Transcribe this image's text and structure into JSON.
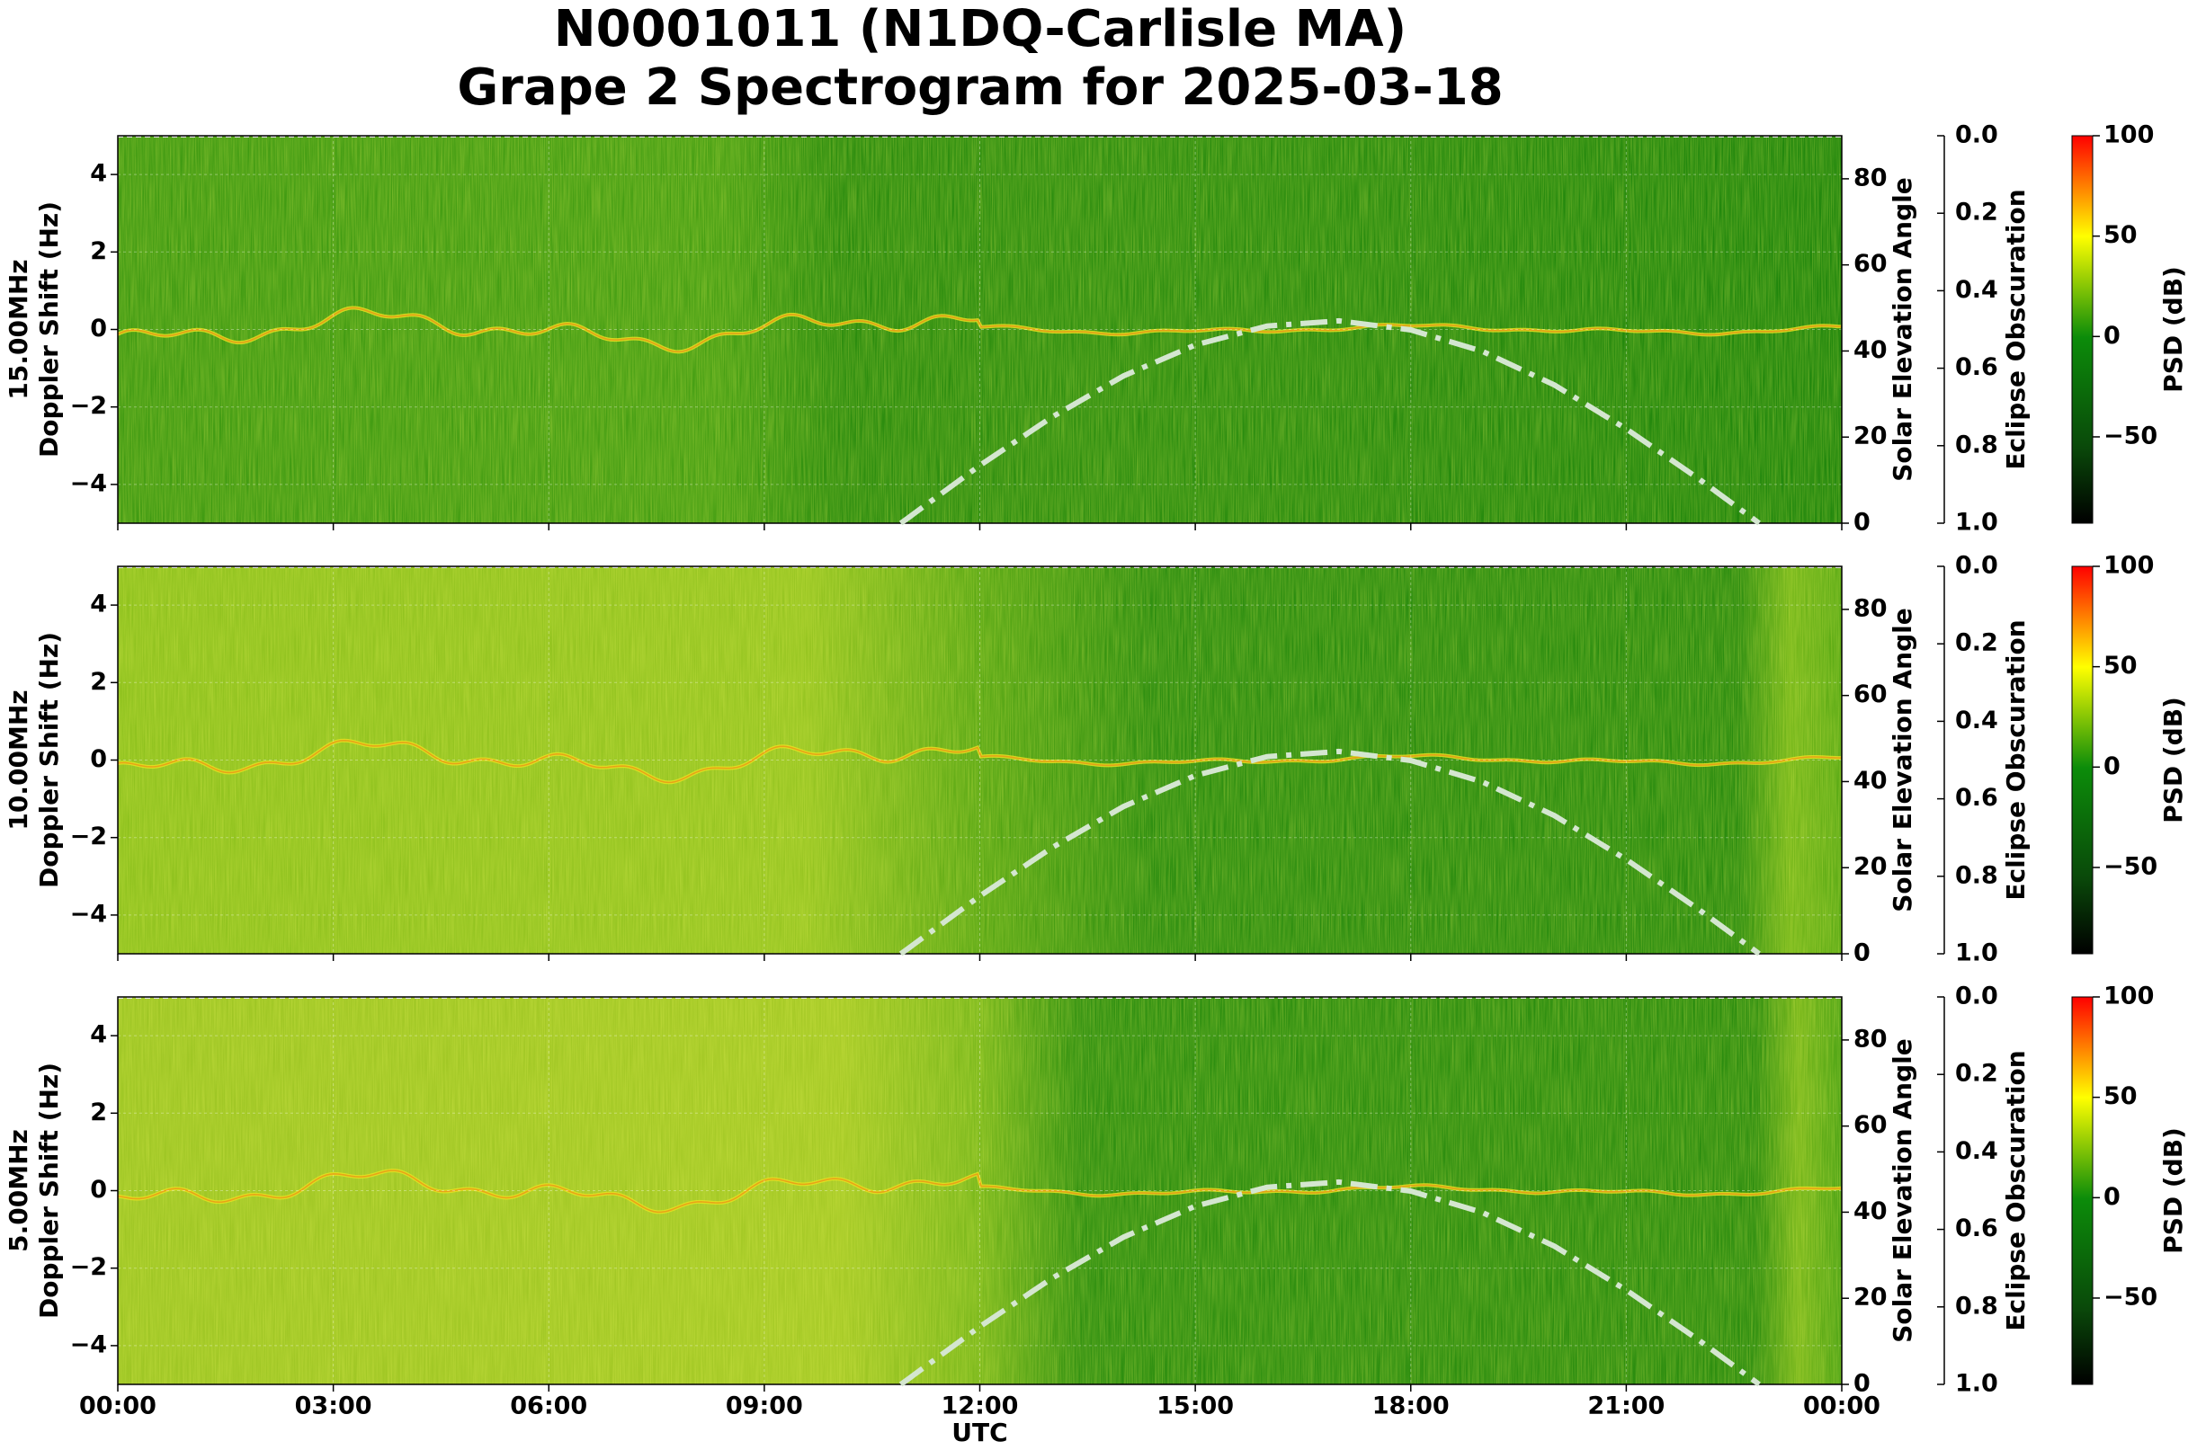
{
  "title": "N0001011 (N1DQ-Carlisle MA)",
  "subtitle": "Grape 2 Spectrogram for 2025-03-18",
  "xlabel": "UTC",
  "xlim": [
    0,
    24
  ],
  "xticks": [
    {
      "value": 0,
      "label": "00:00"
    },
    {
      "value": 3,
      "label": "03:00"
    },
    {
      "value": 6,
      "label": "06:00"
    },
    {
      "value": 9,
      "label": "09:00"
    },
    {
      "value": 12,
      "label": "12:00"
    },
    {
      "value": 15,
      "label": "15:00"
    },
    {
      "value": 18,
      "label": "18:00"
    },
    {
      "value": 21,
      "label": "21:00"
    },
    {
      "value": 24,
      "label": "00:00"
    }
  ],
  "chart_data": [
    {
      "type": "spectrogram",
      "band": "15.00MHz",
      "ylabel": "Doppler Shift (Hz)",
      "ylim": [
        -5,
        5
      ],
      "yticks": [
        {
          "value": -4,
          "label": "−4"
        },
        {
          "value": -2,
          "label": "−2"
        },
        0,
        2,
        4
      ],
      "y2label": "Solar Elevation Angle",
      "y2lim": [
        0,
        90
      ],
      "y2ticks": [
        0,
        20,
        40,
        60,
        80
      ],
      "y3label": "Eclipse Obscuration",
      "y3lim": [
        0,
        1
      ],
      "y3_inverted": true,
      "y3ticks": [
        {
          "value": 0,
          "label": "0.0"
        },
        {
          "value": 0.2,
          "label": "0.2"
        },
        {
          "value": 0.4,
          "label": "0.4"
        },
        {
          "value": 0.6,
          "label": "0.6"
        },
        {
          "value": 0.8,
          "label": "0.8"
        },
        {
          "value": 1,
          "label": "1.0"
        }
      ],
      "colorbar": {
        "label": "PSD (dB)",
        "lim": [
          -93,
          100
        ],
        "ticks": [
          {
            "value": -50,
            "label": "−50"
          },
          0,
          50,
          100
        ]
      },
      "solar_elevation": {
        "axis": "y2",
        "color": "#d4e6d0",
        "x": [
          10.9,
          11,
          12,
          13,
          14,
          15,
          16,
          17,
          18,
          19,
          20,
          21,
          22,
          22.85
        ],
        "values": [
          0,
          1.2,
          13.4,
          24.6,
          34.2,
          41.4,
          45.8,
          47.0,
          44.9,
          39.9,
          32.1,
          21.9,
          10.4,
          0
        ]
      }
    },
    {
      "type": "spectrogram",
      "band": "10.00MHz",
      "ylabel": "Doppler Shift (Hz)",
      "ylim": [
        -5,
        5
      ],
      "yticks": [
        {
          "value": -4,
          "label": "−4"
        },
        {
          "value": -2,
          "label": "−2"
        },
        0,
        2,
        4
      ],
      "y2label": "Solar Elevation Angle",
      "y2lim": [
        0,
        90
      ],
      "y2ticks": [
        0,
        20,
        40,
        60,
        80
      ],
      "y3label": "Eclipse Obscuration",
      "y3lim": [
        0,
        1
      ],
      "y3_inverted": true,
      "y3ticks": [
        {
          "value": 0,
          "label": "0.0"
        },
        {
          "value": 0.2,
          "label": "0.2"
        },
        {
          "value": 0.4,
          "label": "0.4"
        },
        {
          "value": 0.6,
          "label": "0.6"
        },
        {
          "value": 0.8,
          "label": "0.8"
        },
        {
          "value": 1,
          "label": "1.0"
        }
      ],
      "colorbar": {
        "label": "PSD (dB)",
        "lim": [
          -93,
          100
        ],
        "ticks": [
          {
            "value": -50,
            "label": "−50"
          },
          0,
          50,
          100
        ]
      },
      "solar_elevation": {
        "axis": "y2",
        "color": "#d4e6d0",
        "x": [
          10.9,
          11,
          12,
          13,
          14,
          15,
          16,
          17,
          18,
          19,
          20,
          21,
          22,
          22.85
        ],
        "values": [
          0,
          1.2,
          13.4,
          24.6,
          34.2,
          41.4,
          45.8,
          47.0,
          44.9,
          39.9,
          32.1,
          21.9,
          10.4,
          0
        ]
      }
    },
    {
      "type": "spectrogram",
      "band": "5.00MHz",
      "ylabel": "Doppler Shift (Hz)",
      "ylim": [
        -5,
        5
      ],
      "yticks": [
        {
          "value": -4,
          "label": "−4"
        },
        {
          "value": -2,
          "label": "−2"
        },
        0,
        2,
        4
      ],
      "y2label": "Solar Elevation Angle",
      "y2lim": [
        0,
        90
      ],
      "y2ticks": [
        0,
        20,
        40,
        60,
        80
      ],
      "y3label": "Eclipse Obscuration",
      "y3lim": [
        0,
        1
      ],
      "y3_inverted": true,
      "y3ticks": [
        {
          "value": 0,
          "label": "0.0"
        },
        {
          "value": 0.2,
          "label": "0.2"
        },
        {
          "value": 0.4,
          "label": "0.4"
        },
        {
          "value": 0.6,
          "label": "0.6"
        },
        {
          "value": 0.8,
          "label": "0.8"
        },
        {
          "value": 1,
          "label": "1.0"
        }
      ],
      "colorbar": {
        "label": "PSD (dB)",
        "lim": [
          -93,
          100
        ],
        "ticks": [
          {
            "value": -50,
            "label": "−50"
          },
          0,
          50,
          100
        ]
      },
      "solar_elevation": {
        "axis": "y2",
        "color": "#d4e6d0",
        "x": [
          10.9,
          11,
          12,
          13,
          14,
          15,
          16,
          17,
          18,
          19,
          20,
          21,
          22,
          22.85
        ],
        "values": [
          0,
          1.2,
          13.4,
          24.6,
          34.2,
          41.4,
          45.8,
          47.0,
          44.9,
          39.9,
          32.1,
          21.9,
          10.4,
          0
        ]
      }
    }
  ]
}
